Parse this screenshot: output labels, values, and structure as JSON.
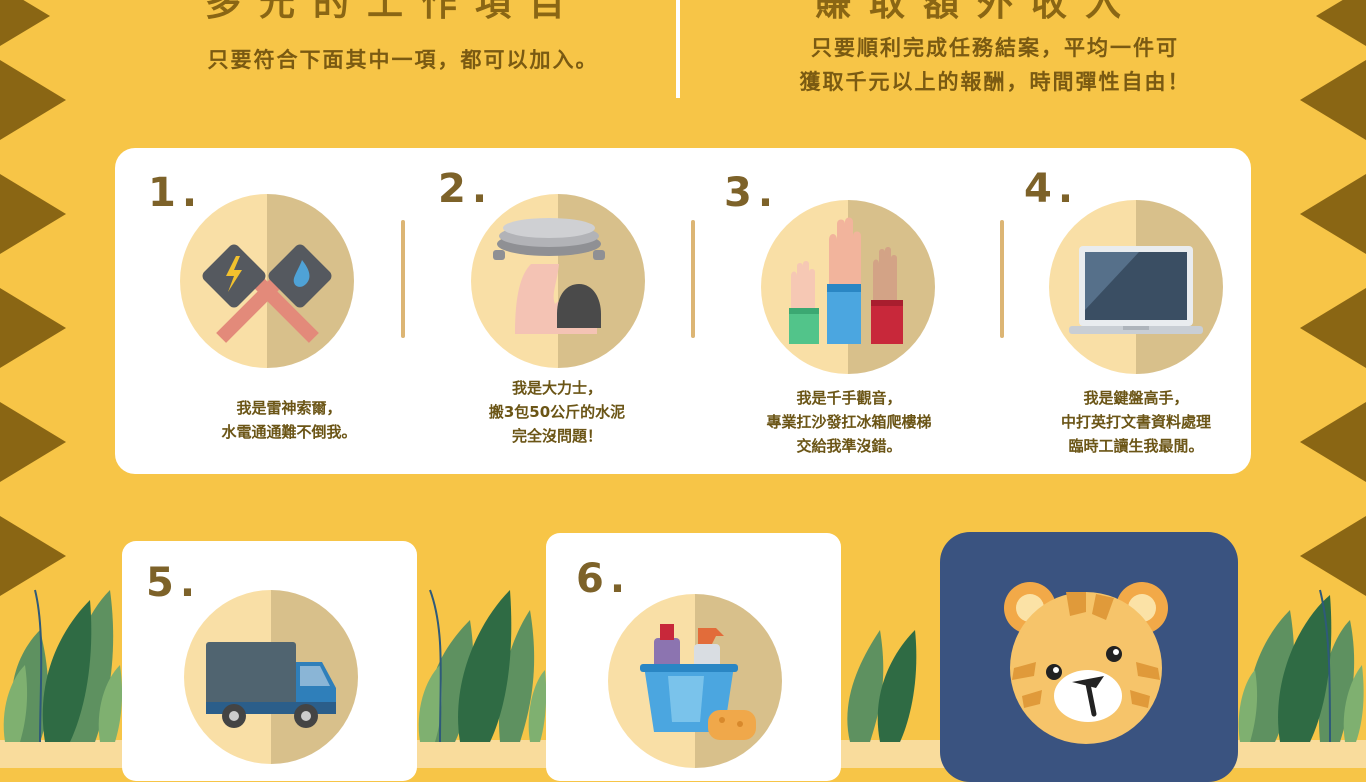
{
  "header": {
    "left_title": "多元的工作項目",
    "left_sub": "只要符合下面其中一項，都可以加入。",
    "right_title": "賺取額外收入",
    "right_sub_line1": "只要順利完成任務結案，平均一件可",
    "right_sub_line2": "獲取千元以上的報酬，時間彈性自由！"
  },
  "items": [
    {
      "number": "1.",
      "icon": "electric-water-tools-icon",
      "lines": [
        "我是雷神索爾，",
        "水電通通難不倒我。"
      ]
    },
    {
      "number": "2.",
      "icon": "strong-arm-lifting-icon",
      "lines": [
        "我是大力士，",
        "搬3包50公斤的水泥",
        "完全沒問題！"
      ]
    },
    {
      "number": "3.",
      "icon": "raised-hands-icon",
      "lines": [
        "我是千手觀音，",
        "專業扛沙發扛冰箱爬樓梯",
        "交給我準沒錯。"
      ]
    },
    {
      "number": "4.",
      "icon": "laptop-icon",
      "lines": [
        "我是鍵盤高手，",
        "中打英打文書資料處理",
        "臨時工讀生我最閒。"
      ]
    },
    {
      "number": "5.",
      "icon": "truck-icon"
    },
    {
      "number": "6.",
      "icon": "cleaning-bucket-icon"
    }
  ],
  "mascot": {
    "icon": "tiger-face-icon"
  },
  "colors": {
    "background": "#f7c547",
    "triangle": "#8a6614",
    "panel": "#ffffff",
    "tiger_card": "#3a5380"
  }
}
